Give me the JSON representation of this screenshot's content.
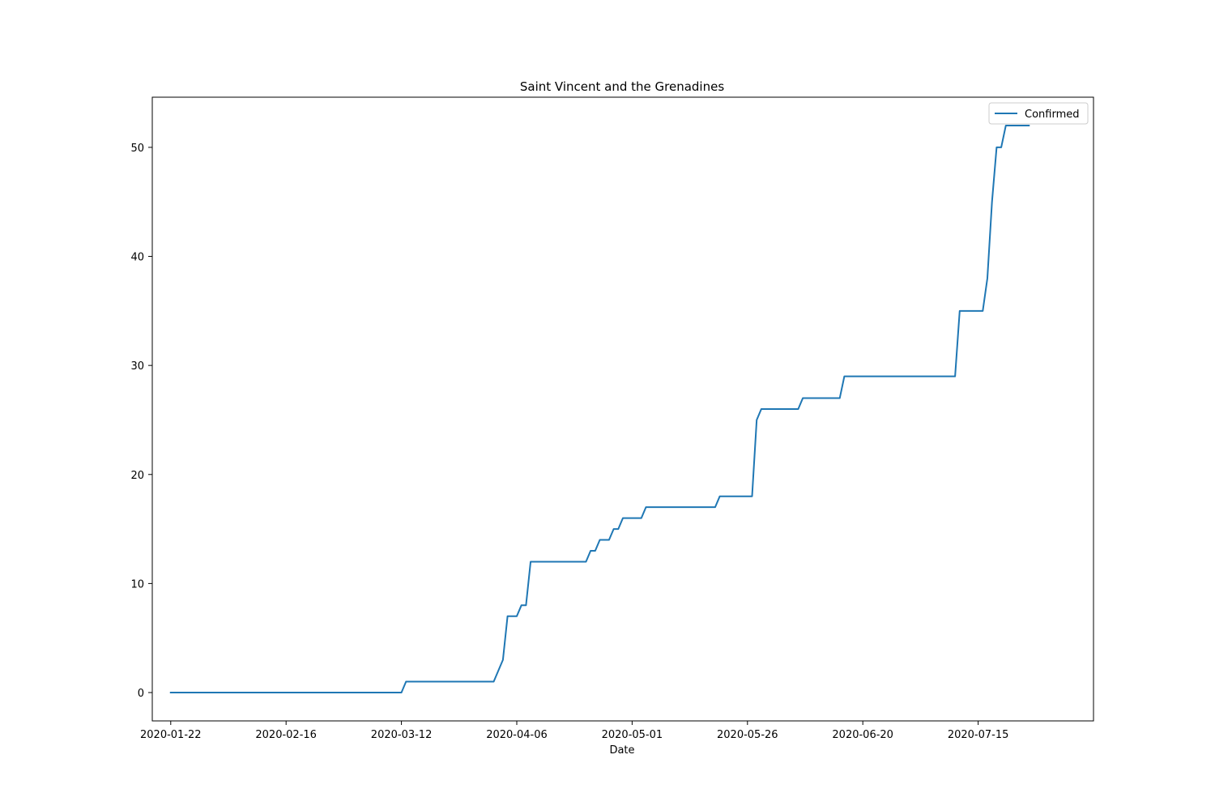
{
  "chart_data": {
    "type": "line",
    "title": "Saint Vincent and the Grenadines",
    "xlabel": "Date",
    "ylabel": "",
    "xlim": [
      "2020-01-18",
      "2020-08-09"
    ],
    "ylim": [
      -2.6,
      54.6
    ],
    "x_ticks": [
      "2020-01-22",
      "2020-02-16",
      "2020-03-12",
      "2020-04-06",
      "2020-05-01",
      "2020-05-26",
      "2020-06-20",
      "2020-07-15"
    ],
    "y_ticks": [
      0,
      10,
      20,
      30,
      40,
      50
    ],
    "grid": false,
    "legend": {
      "position": "top-right"
    },
    "series": [
      {
        "name": "Confirmed",
        "color": "#1f77b4",
        "points": [
          [
            "2020-01-22",
            0
          ],
          [
            "2020-03-12",
            0
          ],
          [
            "2020-03-13",
            1
          ],
          [
            "2020-04-01",
            1
          ],
          [
            "2020-04-03",
            3
          ],
          [
            "2020-04-04",
            7
          ],
          [
            "2020-04-06",
            7
          ],
          [
            "2020-04-07",
            8
          ],
          [
            "2020-04-08",
            8
          ],
          [
            "2020-04-09",
            12
          ],
          [
            "2020-04-21",
            12
          ],
          [
            "2020-04-22",
            13
          ],
          [
            "2020-04-23",
            13
          ],
          [
            "2020-04-24",
            14
          ],
          [
            "2020-04-26",
            14
          ],
          [
            "2020-04-27",
            15
          ],
          [
            "2020-04-28",
            15
          ],
          [
            "2020-04-29",
            16
          ],
          [
            "2020-05-03",
            16
          ],
          [
            "2020-05-04",
            17
          ],
          [
            "2020-05-19",
            17
          ],
          [
            "2020-05-20",
            18
          ],
          [
            "2020-05-27",
            18
          ],
          [
            "2020-05-28",
            25
          ],
          [
            "2020-05-29",
            26
          ],
          [
            "2020-06-06",
            26
          ],
          [
            "2020-06-07",
            27
          ],
          [
            "2020-06-15",
            27
          ],
          [
            "2020-06-16",
            29
          ],
          [
            "2020-07-10",
            29
          ],
          [
            "2020-07-11",
            35
          ],
          [
            "2020-07-16",
            35
          ],
          [
            "2020-07-17",
            38
          ],
          [
            "2020-07-18",
            45
          ],
          [
            "2020-07-19",
            50
          ],
          [
            "2020-07-20",
            50
          ],
          [
            "2020-07-21",
            52
          ],
          [
            "2020-07-26",
            52
          ]
        ]
      }
    ]
  }
}
